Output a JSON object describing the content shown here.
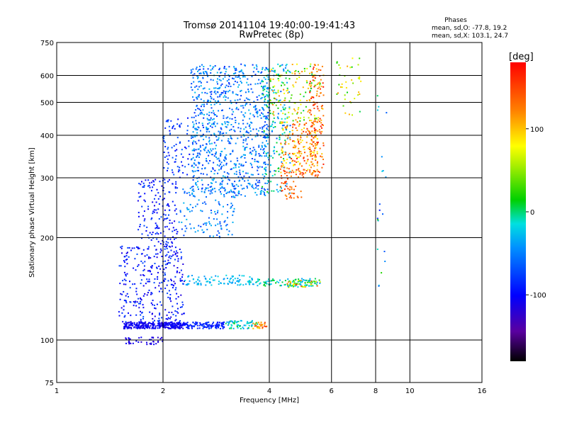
{
  "chart_data": {
    "type": "scatter",
    "title": "Tromsø 20141104 19:40:00-19:41:43",
    "subtitle": "RwPretec (8p)",
    "xlabel": "Frequency [MHz]",
    "ylabel": "Stationary phase Virtual Height [km]",
    "x_scale": "log",
    "y_scale": "log",
    "xlim": [
      1,
      16
    ],
    "ylim": [
      75,
      750
    ],
    "x_ticks": [
      1,
      2,
      4,
      6,
      8,
      10,
      16
    ],
    "y_ticks": [
      75,
      100,
      200,
      300,
      400,
      500,
      600,
      750
    ],
    "grid": true,
    "stats": {
      "heading": "Phases",
      "line_o": "mean, sd,O: -77.8, 19.2",
      "line_x": "mean, sd,X: 103.1, 24.7"
    },
    "colorbar": {
      "label": "[deg]",
      "min": -180,
      "max": 180,
      "ticks": [
        100,
        0,
        -100
      ]
    },
    "series": [
      {
        "clusters": [
          {
            "f": [
              1.55,
              2.3
            ],
            "h": [
              108,
              113
            ],
            "phase": [
              -115,
              -95
            ],
            "n": 300
          },
          {
            "f": [
              2.3,
              3.0
            ],
            "h": [
              108,
              113
            ],
            "phase": [
              -100,
              -75
            ],
            "n": 120
          },
          {
            "f": [
              3.0,
              3.7
            ],
            "h": [
              108,
              114
            ],
            "phase": [
              -50,
              10
            ],
            "n": 60
          },
          {
            "f": [
              3.6,
              3.95
            ],
            "h": [
              108,
              113
            ],
            "phase": [
              90,
              160
            ],
            "n": 30
          },
          {
            "f": [
              1.55,
              2.0
            ],
            "h": [
              97,
              102
            ],
            "phase": [
              -120,
              -100
            ],
            "n": 40
          },
          {
            "f": [
              1.5,
              2.3
            ],
            "h": [
              113,
              190
            ],
            "phase": [
              -115,
              -70
            ],
            "n": 320
          },
          {
            "f": [
              1.7,
              2.2
            ],
            "h": [
              190,
              300
            ],
            "phase": [
              -110,
              -70
            ],
            "n": 160
          },
          {
            "f": [
              2.0,
              2.4
            ],
            "h": [
              300,
              450
            ],
            "phase": [
              -105,
              -60
            ],
            "n": 80
          },
          {
            "f": [
              2.2,
              3.2
            ],
            "h": [
              200,
              280
            ],
            "phase": [
              -80,
              -30
            ],
            "n": 120
          },
          {
            "f": [
              2.3,
              3.6
            ],
            "h": [
              145,
              155
            ],
            "phase": [
              -45,
              -15
            ],
            "n": 90
          },
          {
            "f": [
              3.5,
              5.4
            ],
            "h": [
              144,
              152
            ],
            "phase": [
              -40,
              10
            ],
            "n": 90
          },
          {
            "f": [
              4.5,
              5.6
            ],
            "h": [
              143,
              150
            ],
            "phase": [
              -60,
              170
            ],
            "n": 60
          },
          {
            "f": [
              2.4,
              4.0
            ],
            "h": [
              265,
              650
            ],
            "phase": [
              -85,
              -25
            ],
            "n": 900
          },
          {
            "f": [
              3.8,
              4.6
            ],
            "h": [
              270,
              650
            ],
            "phase": [
              -70,
              20
            ],
            "n": 200
          },
          {
            "f": [
              4.3,
              5.0
            ],
            "h": [
              260,
              320
            ],
            "phase": [
              120,
              160
            ],
            "n": 60
          },
          {
            "f": [
              4.3,
              5.5
            ],
            "h": [
              310,
              440
            ],
            "phase": [
              70,
              170
            ],
            "n": 200
          },
          {
            "f": [
              5.2,
              5.7
            ],
            "h": [
              300,
              650
            ],
            "phase": [
              100,
              175
            ],
            "n": 140
          },
          {
            "f": [
              4.0,
              5.6
            ],
            "h": [
              440,
              650
            ],
            "phase": [
              0,
              130
            ],
            "n": 130
          },
          {
            "f": [
              6.2,
              7.3
            ],
            "h": [
              450,
              680
            ],
            "phase": [
              0,
              120
            ],
            "n": 40
          },
          {
            "f": [
              8.1,
              8.6
            ],
            "h": [
              140,
              550
            ],
            "phase": [
              -100,
              20
            ],
            "n": 20
          }
        ]
      }
    ]
  }
}
